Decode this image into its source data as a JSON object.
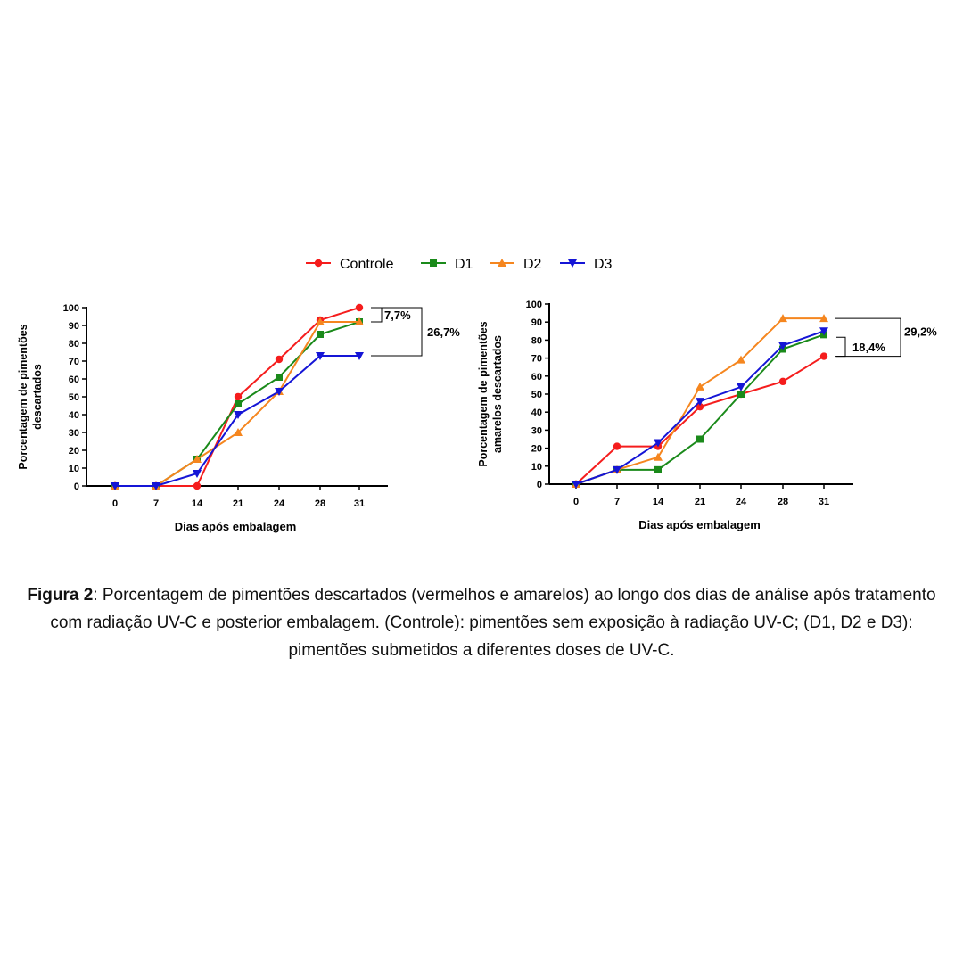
{
  "legend": [
    {
      "name": "Controle",
      "color": "#f51d1d",
      "marker": "circle"
    },
    {
      "name": "D1",
      "color": "#1a8a1a",
      "marker": "square"
    },
    {
      "name": "D2",
      "color": "#f5861f",
      "marker": "triangle-up"
    },
    {
      "name": "D3",
      "color": "#1515d6",
      "marker": "triangle-down"
    }
  ],
  "chart_data": [
    {
      "type": "line",
      "ylabel": [
        "Porcentagem de pimentões",
        "descartados"
      ],
      "xlabel": "Dias após embalagem",
      "categories": [
        "0",
        "7",
        "14",
        "21",
        "24",
        "28",
        "31"
      ],
      "ylim": [
        0,
        100
      ],
      "yticks": [
        "0",
        "10",
        "20",
        "30",
        "40",
        "50",
        "60",
        "70",
        "80",
        "90",
        "100"
      ],
      "series": [
        {
          "name": "Controle",
          "values": [
            0,
            0,
            0,
            50,
            71,
            93,
            100
          ]
        },
        {
          "name": "D1",
          "values": [
            0,
            0,
            15,
            46,
            61,
            85,
            92
          ]
        },
        {
          "name": "D2",
          "values": [
            0,
            0,
            15,
            30,
            53,
            92,
            92
          ]
        },
        {
          "name": "D3",
          "values": [
            0,
            0,
            7,
            40,
            53,
            73,
            73
          ]
        }
      ],
      "annotations": [
        "7,7%",
        "26,7%"
      ]
    },
    {
      "type": "line",
      "ylabel": [
        "Porcentagem de pimentões",
        "amarelos descartados"
      ],
      "xlabel": "Dias após embalagem",
      "categories": [
        "0",
        "7",
        "14",
        "21",
        "24",
        "28",
        "31"
      ],
      "ylim": [
        0,
        100
      ],
      "yticks": [
        "0",
        "10",
        "20",
        "30",
        "40",
        "50",
        "60",
        "70",
        "80",
        "90",
        "100"
      ],
      "series": [
        {
          "name": "Controle",
          "values": [
            0,
            21,
            21,
            43,
            50,
            57,
            71
          ]
        },
        {
          "name": "D1",
          "values": [
            0,
            8,
            8,
            25,
            50,
            75,
            83
          ]
        },
        {
          "name": "D2",
          "values": [
            0,
            8,
            15,
            54,
            69,
            92,
            92
          ]
        },
        {
          "name": "D3",
          "values": [
            0,
            8,
            23,
            46,
            54,
            77,
            85
          ]
        }
      ],
      "annotations": [
        "29,2%",
        "18,4%"
      ]
    }
  ],
  "caption": {
    "label": "Figura 2",
    "text": ": Porcentagem de pimentões descartados (vermelhos e amarelos) ao longo dos dias de análise após tratamento com radiação UV-C e posterior embalagem. (Controle): pimentões sem exposição à radiação UV-C; (D1, D2 e D3): pimentões submetidos a diferentes doses de UV-C."
  }
}
